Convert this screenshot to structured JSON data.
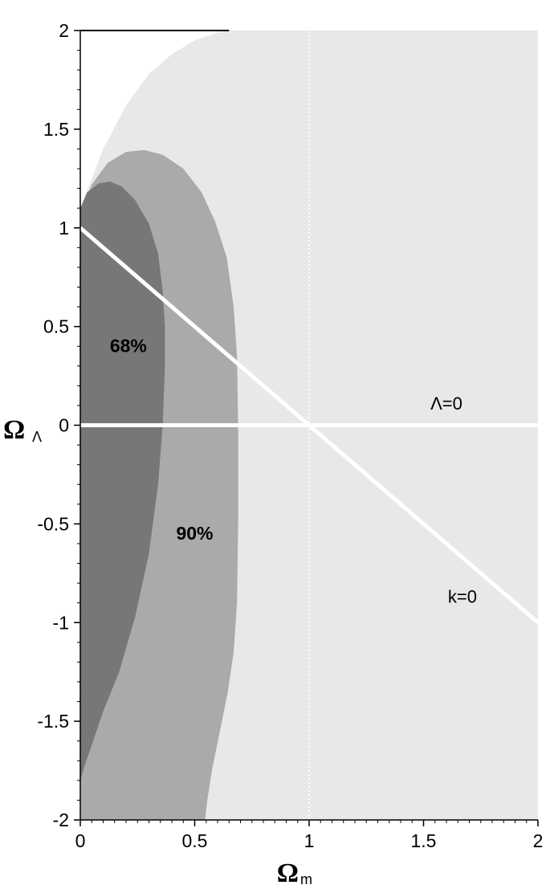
{
  "chart_data": {
    "type": "area",
    "title": "",
    "xlabel": "Ω",
    "xlabel_sub": "m",
    "ylabel": "Ω",
    "ylabel_sub": "Λ",
    "xlim": [
      0,
      2
    ],
    "ylim": [
      -2,
      2
    ],
    "xticks": [
      0,
      0.5,
      1,
      1.5,
      2
    ],
    "xtick_labels": [
      "0",
      "0.5",
      "1",
      "1.5",
      "2"
    ],
    "yticks": [
      -2,
      -1.5,
      -1,
      -0.5,
      0,
      0.5,
      1,
      1.5,
      2
    ],
    "ytick_labels": [
      "-2",
      "-1.5",
      "-1",
      "-0.5",
      "0",
      "0.5",
      "1",
      "1.5",
      "2"
    ],
    "grid": false,
    "regions": [
      {
        "name": "outer",
        "label": "",
        "color": "#e8e8e8",
        "boundary": [
          [
            0,
            1.1
          ],
          [
            0.1,
            1.4
          ],
          [
            0.2,
            1.62
          ],
          [
            0.3,
            1.78
          ],
          [
            0.4,
            1.88
          ],
          [
            0.5,
            1.95
          ],
          [
            0.6,
            1.99
          ],
          [
            0.65,
            2.0
          ],
          [
            2,
            2
          ],
          [
            2,
            -2
          ],
          [
            0,
            -2
          ]
        ]
      },
      {
        "name": "90%",
        "label": "90%",
        "color": "#aaaaaa",
        "boundary": [
          [
            0,
            1.08
          ],
          [
            0.05,
            1.22
          ],
          [
            0.12,
            1.33
          ],
          [
            0.2,
            1.385
          ],
          [
            0.28,
            1.395
          ],
          [
            0.36,
            1.37
          ],
          [
            0.45,
            1.3
          ],
          [
            0.53,
            1.18
          ],
          [
            0.59,
            1.03
          ],
          [
            0.64,
            0.85
          ],
          [
            0.67,
            0.6
          ],
          [
            0.685,
            0.35
          ],
          [
            0.69,
            0.0
          ],
          [
            0.69,
            -0.5
          ],
          [
            0.685,
            -0.9
          ],
          [
            0.67,
            -1.15
          ],
          [
            0.645,
            -1.35
          ],
          [
            0.61,
            -1.55
          ],
          [
            0.575,
            -1.75
          ],
          [
            0.555,
            -1.9
          ],
          [
            0.545,
            -2.0
          ],
          [
            0,
            -2
          ]
        ]
      },
      {
        "name": "68%",
        "label": "68%",
        "color": "#777777",
        "boundary": [
          [
            0,
            1.1
          ],
          [
            0.03,
            1.18
          ],
          [
            0.08,
            1.225
          ],
          [
            0.13,
            1.235
          ],
          [
            0.18,
            1.21
          ],
          [
            0.24,
            1.14
          ],
          [
            0.3,
            1.02
          ],
          [
            0.34,
            0.87
          ],
          [
            0.36,
            0.68
          ],
          [
            0.37,
            0.5
          ],
          [
            0.37,
            0.3
          ],
          [
            0.36,
            0.0
          ],
          [
            0.34,
            -0.3
          ],
          [
            0.3,
            -0.65
          ],
          [
            0.24,
            -0.97
          ],
          [
            0.17,
            -1.25
          ],
          [
            0.1,
            -1.45
          ],
          [
            0.05,
            -1.62
          ],
          [
            0.02,
            -1.72
          ],
          [
            0,
            -1.8
          ]
        ]
      }
    ],
    "region_label_positions": [
      {
        "label": "68%",
        "x": 0.21,
        "y": 0.37
      },
      {
        "label": "90%",
        "x": 0.5,
        "y": -0.58
      }
    ],
    "lines": [
      {
        "name": "k=0",
        "label": "k=0",
        "color": "#ffffff",
        "points": [
          [
            0,
            1
          ],
          [
            2,
            -1
          ]
        ],
        "label_x": 1.67,
        "label_y": -0.9
      },
      {
        "name": "Λ=0",
        "label": "Λ=0",
        "color": "#ffffff",
        "points": [
          [
            0,
            0
          ],
          [
            2,
            0
          ]
        ],
        "label_x": 1.6,
        "label_y": 0.08
      },
      {
        "name": "vertical-dotted",
        "label": "",
        "color": "#ffffff",
        "points": [
          [
            1,
            -2
          ],
          [
            1,
            2
          ]
        ],
        "dotted": true
      }
    ]
  }
}
